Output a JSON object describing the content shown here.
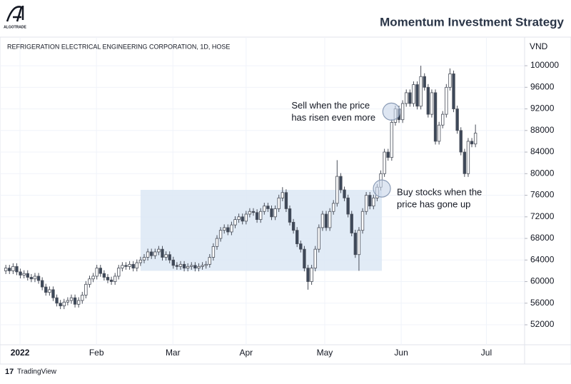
{
  "header": {
    "logo": "ALGOTRADE",
    "title": "Momentum Investment Strategy"
  },
  "footer": {
    "brand": "TradingView"
  },
  "chart_data": {
    "type": "candlestick",
    "title": "REFRIGERATION ELECTRICAL ENGINEERING CORPORATION, 1D, HOSE",
    "y_unit": "VND",
    "xlim": [
      -1.6,
      142.5
    ],
    "xticks": [
      {
        "value": 3.9,
        "label": "2022"
      },
      {
        "value": 24.9,
        "label": "Feb"
      },
      {
        "value": 45.9,
        "label": "Mar"
      },
      {
        "value": 66,
        "label": "Apr"
      },
      {
        "value": 87.6,
        "label": "May"
      },
      {
        "value": 108.6,
        "label": "Jun"
      },
      {
        "value": 132,
        "label": "Jul"
      }
    ],
    "ylim": [
      48300,
      105300
    ],
    "yticks": [
      52000,
      56000,
      60000,
      64000,
      68000,
      72000,
      76000,
      80000,
      84000,
      88000,
      92000,
      96000,
      100000
    ],
    "grid": true,
    "up_color": "#ffffff",
    "down_color": "#3d4859",
    "edge_color": "#4a4f5a",
    "candles": [
      [
        62000,
        63100,
        61400,
        62500
      ],
      [
        62500,
        63100,
        61400,
        62000
      ],
      [
        62000,
        63400,
        61400,
        62800
      ],
      [
        62800,
        63400,
        61200,
        61800
      ],
      [
        61800,
        62400,
        60600,
        61200
      ],
      [
        61200,
        62100,
        60600,
        61500
      ],
      [
        61500,
        62100,
        60200,
        60800
      ],
      [
        60800,
        61400,
        59900,
        60500
      ],
      [
        60500,
        61600,
        59900,
        61000
      ],
      [
        61000,
        61600,
        59600,
        60200
      ],
      [
        60200,
        60800,
        58400,
        59000
      ],
      [
        59000,
        59600,
        57400,
        58000
      ],
      [
        58000,
        59100,
        57400,
        58500
      ],
      [
        58500,
        59100,
        56400,
        57000
      ],
      [
        57000,
        57600,
        55400,
        56000
      ],
      [
        56000,
        56600,
        54900,
        55500
      ],
      [
        55500,
        56800,
        54900,
        56200
      ],
      [
        56200,
        57100,
        55600,
        56500
      ],
      [
        56500,
        57600,
        55900,
        57000
      ],
      [
        57000,
        57600,
        55200,
        55800
      ],
      [
        55800,
        57100,
        55200,
        56500
      ],
      [
        56500,
        58100,
        55900,
        57500
      ],
      [
        57500,
        60100,
        56900,
        59500
      ],
      [
        59500,
        61100,
        58900,
        60500
      ],
      [
        60500,
        61600,
        59900,
        61000
      ],
      [
        61000,
        63100,
        60400,
        62500
      ],
      [
        62500,
        63100,
        60900,
        61500
      ],
      [
        61500,
        62100,
        60200,
        60800
      ],
      [
        60800,
        61400,
        59700,
        60300
      ],
      [
        60300,
        60900,
        59400,
        60000
      ],
      [
        60000,
        61600,
        59400,
        61000
      ],
      [
        61000,
        63100,
        60400,
        62500
      ],
      [
        62500,
        63600,
        61900,
        63000
      ],
      [
        63000,
        63600,
        62200,
        62800
      ],
      [
        62800,
        63800,
        62200,
        63200
      ],
      [
        63200,
        63800,
        61900,
        62500
      ],
      [
        62500,
        64100,
        61900,
        63500
      ],
      [
        63500,
        64600,
        62900,
        64000
      ],
      [
        64000,
        65100,
        63400,
        64500
      ],
      [
        64500,
        66100,
        63900,
        65500
      ],
      [
        65500,
        66100,
        64200,
        64800
      ],
      [
        64800,
        66100,
        64200,
        65500
      ],
      [
        65500,
        66600,
        64900,
        66000
      ],
      [
        66000,
        66600,
        63900,
        64500
      ],
      [
        64500,
        65600,
        63900,
        65000
      ],
      [
        65000,
        65600,
        63400,
        64000
      ],
      [
        64000,
        64600,
        62400,
        63000
      ],
      [
        63000,
        63600,
        62200,
        62800
      ],
      [
        62800,
        63800,
        62200,
        63200
      ],
      [
        63200,
        63800,
        61900,
        62500
      ],
      [
        62500,
        63400,
        61900,
        62800
      ],
      [
        62800,
        63600,
        62200,
        63000
      ],
      [
        63000,
        63600,
        61900,
        62500
      ],
      [
        62500,
        63400,
        61900,
        62800
      ],
      [
        62800,
        63600,
        62200,
        63000
      ],
      [
        63000,
        63800,
        62400,
        63200
      ],
      [
        63200,
        65100,
        62600,
        64500
      ],
      [
        64500,
        67100,
        63900,
        66500
      ],
      [
        66500,
        68600,
        65900,
        68000
      ],
      [
        68000,
        70100,
        67400,
        69500
      ],
      [
        69500,
        70600,
        68900,
        70000
      ],
      [
        70000,
        70600,
        68600,
        69200
      ],
      [
        69200,
        71100,
        68600,
        70500
      ],
      [
        70500,
        72100,
        69900,
        71500
      ],
      [
        71500,
        72600,
        70900,
        72000
      ],
      [
        72000,
        72600,
        70600,
        71200
      ],
      [
        71200,
        73100,
        70600,
        72500
      ],
      [
        72500,
        73600,
        71900,
        73000
      ],
      [
        73000,
        73600,
        72200,
        72800
      ],
      [
        72800,
        73400,
        70900,
        71500
      ],
      [
        71500,
        73600,
        70900,
        73000
      ],
      [
        73000,
        74600,
        72400,
        74000
      ],
      [
        74000,
        74600,
        72900,
        73500
      ],
      [
        73500,
        74100,
        71400,
        72000
      ],
      [
        72000,
        74100,
        71400,
        73500
      ],
      [
        73500,
        76100,
        72900,
        75500
      ],
      [
        75500,
        77500,
        74900,
        76500
      ],
      [
        76500,
        77100,
        72900,
        73500
      ],
      [
        73500,
        74100,
        70400,
        71000
      ],
      [
        71000,
        71600,
        68900,
        69500
      ],
      [
        69500,
        70100,
        66400,
        67000
      ],
      [
        67000,
        67600,
        65400,
        66000
      ],
      [
        66000,
        66600,
        61900,
        62500
      ],
      [
        62500,
        63100,
        58500,
        60000
      ],
      [
        60000,
        63100,
        59400,
        62500
      ],
      [
        62500,
        66600,
        61900,
        66000
      ],
      [
        66000,
        70600,
        65400,
        70000
      ],
      [
        70000,
        73100,
        69400,
        72500
      ],
      [
        72500,
        73100,
        69400,
        70000
      ],
      [
        70000,
        73600,
        69400,
        73000
      ],
      [
        73000,
        75100,
        72400,
        74500
      ],
      [
        74500,
        82500,
        73900,
        79500
      ],
      [
        79500,
        80100,
        76400,
        77000
      ],
      [
        77000,
        77600,
        74900,
        75500
      ],
      [
        75500,
        76100,
        71900,
        72500
      ],
      [
        72500,
        73100,
        68400,
        69000
      ],
      [
        69000,
        69600,
        64400,
        65000
      ],
      [
        65000,
        70100,
        62000,
        69500
      ],
      [
        69500,
        73600,
        68900,
        73000
      ],
      [
        73000,
        76600,
        72400,
        76000
      ],
      [
        76000,
        76600,
        73400,
        74000
      ],
      [
        74000,
        76100,
        73400,
        75500
      ],
      [
        75500,
        78100,
        74900,
        77500
      ],
      [
        77500,
        80600,
        76900,
        80000
      ],
      [
        80000,
        84600,
        79400,
        84000
      ],
      [
        84000,
        84600,
        82400,
        83000
      ],
      [
        83000,
        90100,
        82400,
        89500
      ],
      [
        89500,
        92600,
        88900,
        92000
      ],
      [
        92000,
        92600,
        89400,
        90000
      ],
      [
        90000,
        93600,
        89400,
        93000
      ],
      [
        93000,
        95600,
        92400,
        95000
      ],
      [
        95000,
        95600,
        92400,
        93000
      ],
      [
        93000,
        97100,
        92400,
        96500
      ],
      [
        96500,
        97100,
        91900,
        92500
      ],
      [
        92500,
        100000,
        91900,
        98000
      ],
      [
        98000,
        98600,
        95400,
        96000
      ],
      [
        96000,
        96600,
        90400,
        91000
      ],
      [
        91000,
        95600,
        90400,
        95000
      ],
      [
        95000,
        95600,
        85400,
        86000
      ],
      [
        86000,
        89600,
        85400,
        89000
      ],
      [
        89000,
        91600,
        88400,
        91000
      ],
      [
        91000,
        96600,
        90400,
        96000
      ],
      [
        96000,
        99500,
        95400,
        98500
      ],
      [
        98500,
        99100,
        91400,
        92000
      ],
      [
        92000,
        92600,
        87400,
        88000
      ],
      [
        88000,
        88600,
        83400,
        84000
      ],
      [
        84000,
        84600,
        79400,
        80000
      ],
      [
        80000,
        86600,
        79400,
        86000
      ],
      [
        86000,
        86600,
        84900,
        85500
      ],
      [
        85500,
        89100,
        84900,
        87500
      ]
    ],
    "highlight": {
      "x": [
        37,
        103.3
      ],
      "y": [
        62000,
        77000
      ],
      "color": "#dce7f5"
    },
    "annotations": [
      {
        "lines": [
          "Sell when the price",
          "has risen even more"
        ],
        "x": 105.9,
        "y": 91500
      },
      {
        "lines": [
          "Buy stocks when the",
          "price has gone up"
        ],
        "x": 103.3,
        "y": 77250
      }
    ]
  }
}
